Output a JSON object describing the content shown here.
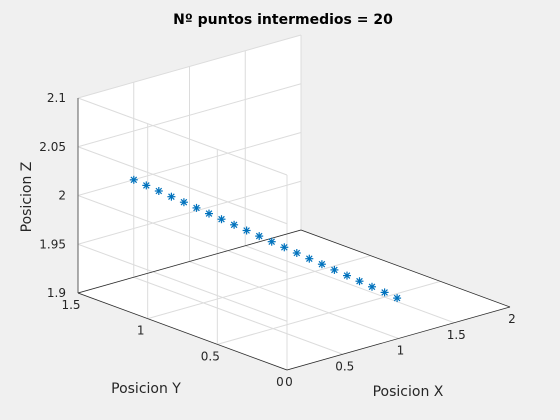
{
  "chart_data": {
    "type": "scatter",
    "title": "Nº puntos intermedios = 20",
    "xlabel": "Posicion X",
    "ylabel": "Posicion Y",
    "zlabel": "Posicion Z",
    "xlim": [
      0,
      2
    ],
    "ylim": [
      0,
      1.5
    ],
    "zlim": [
      1.9,
      2.1
    ],
    "xticks": [
      0,
      0.5,
      1,
      1.5,
      2
    ],
    "yticks": [
      0,
      0.5,
      1,
      1.5
    ],
    "zticks": [
      1.9,
      1.95,
      2,
      2.05,
      2.1
    ],
    "xtick_labels": [
      "0",
      "0.5",
      "1",
      "1.5",
      "2"
    ],
    "ytick_labels": [
      "0",
      "0.5",
      "1",
      "1.5"
    ],
    "ztick_labels": [
      "1.9",
      "1.95",
      "2",
      "2.05",
      "2.1"
    ],
    "grid": true,
    "marker": "*",
    "series": [
      {
        "color": "#0072BD",
        "x": [
          0.5,
          0.55,
          0.6,
          0.65,
          0.7,
          0.75,
          0.8,
          0.85,
          0.9,
          0.95,
          1.0,
          1.05,
          1.1,
          1.15,
          1.2,
          1.25,
          1.3,
          1.35,
          1.4,
          1.45,
          1.5,
          1.55
        ],
        "y": [
          1.5,
          1.45,
          1.4,
          1.35,
          1.3,
          1.25,
          1.2,
          1.15,
          1.1,
          1.05,
          1.0,
          0.95,
          0.9,
          0.85,
          0.8,
          0.75,
          0.7,
          0.65,
          0.6,
          0.55,
          0.5,
          0.45
        ],
        "z": [
          2.0,
          1.9952,
          1.9905,
          1.9857,
          1.981,
          1.9762,
          1.9714,
          1.9667,
          1.9619,
          1.9571,
          1.9524,
          1.9476,
          1.9429,
          1.9381,
          1.9333,
          1.9286,
          1.9238,
          1.919,
          1.9143,
          1.9095,
          1.9048,
          1.9
        ]
      }
    ]
  }
}
